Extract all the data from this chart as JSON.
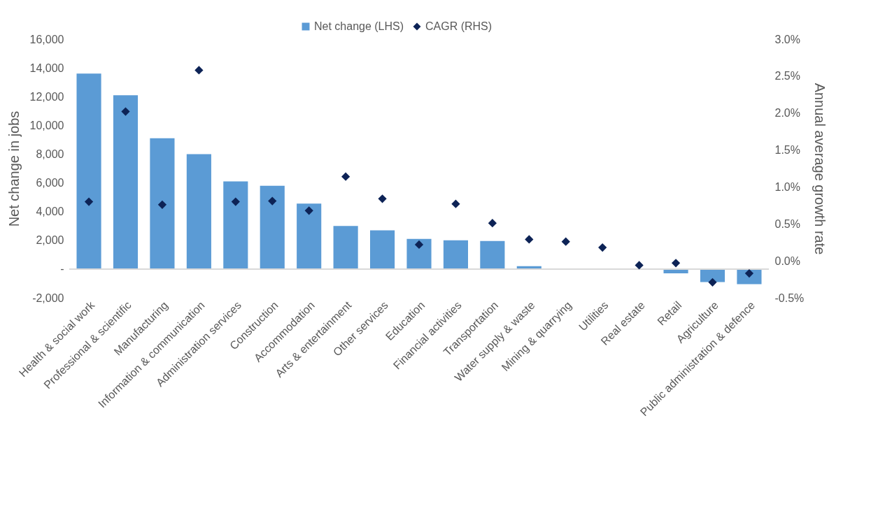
{
  "chart_data": {
    "type": "bar",
    "categories": [
      "Health & social work",
      "Professional & scientific",
      "Manufacturing",
      "Information & communication",
      "Administration services",
      "Construction",
      "Accommodation",
      "Arts & entertainment",
      "Other services",
      "Education",
      "Financial activities",
      "Transportation",
      "Water supply & waste",
      "Mining & quarrying",
      "Utilities",
      "Real estate",
      "Retail",
      "Agriculture",
      "Public administration & defence"
    ],
    "series": [
      {
        "name": "Net change (LHS)",
        "color": "#5b9bd5",
        "values": [
          13600,
          12100,
          9100,
          8000,
          6100,
          5800,
          4550,
          3000,
          2700,
          2100,
          2000,
          1950,
          200,
          0,
          0,
          0,
          -300,
          -900,
          -1050
        ]
      },
      {
        "name": "CAGR (RHS)",
        "type": "scatter",
        "axis": "y2",
        "color": "#0d2356",
        "values": [
          0.8,
          2.02,
          0.76,
          2.58,
          0.8,
          0.81,
          0.68,
          1.14,
          0.84,
          0.22,
          0.77,
          0.51,
          0.29,
          0.26,
          0.18,
          -0.06,
          -0.03,
          -0.29,
          -0.17
        ]
      }
    ],
    "ylabel": "Net change in jobs",
    "y2label": "Annual average growth rate",
    "ylim": [
      -2000,
      16000
    ],
    "yticks": [
      {
        "value": -2000,
        "label": "-2,000"
      },
      {
        "value": 0,
        "label": "-"
      },
      {
        "value": 2000,
        "label": "2,000"
      },
      {
        "value": 4000,
        "label": "4,000"
      },
      {
        "value": 6000,
        "label": "6,000"
      },
      {
        "value": 8000,
        "label": "8,000"
      },
      {
        "value": 10000,
        "label": "10,000"
      },
      {
        "value": 12000,
        "label": "12,000"
      },
      {
        "value": 14000,
        "label": "14,000"
      },
      {
        "value": 16000,
        "label": "16,000"
      }
    ],
    "y2lim": [
      -0.5,
      3.0
    ],
    "y2ticks": [
      {
        "value": -0.5,
        "label": "-0.5%"
      },
      {
        "value": 0,
        "label": "0.0%"
      },
      {
        "value": 0.5,
        "label": "0.5%"
      },
      {
        "value": 1.0,
        "label": "1.0%"
      },
      {
        "value": 1.5,
        "label": "1.5%"
      },
      {
        "value": 2.0,
        "label": "2.0%"
      },
      {
        "value": 2.5,
        "label": "2.5%"
      },
      {
        "value": 3.0,
        "label": "3.0%"
      }
    ],
    "legend": "top",
    "marker": "diamond"
  }
}
